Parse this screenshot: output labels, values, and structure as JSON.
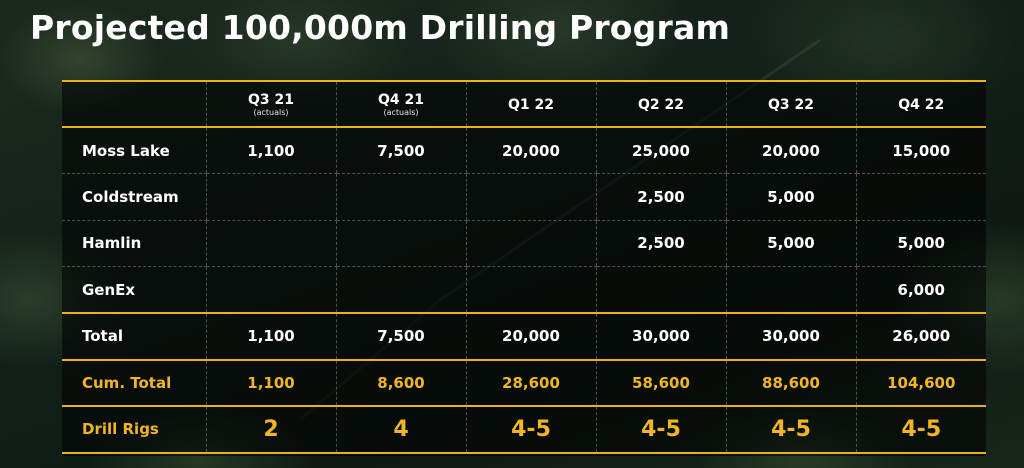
{
  "title": "Projected 100,000m Drilling Program",
  "columns": [
    {
      "label": "Q3 21",
      "note": "(actuals)"
    },
    {
      "label": "Q4 21",
      "note": "(actuals)"
    },
    {
      "label": "Q1 22",
      "note": ""
    },
    {
      "label": "Q2 22",
      "note": ""
    },
    {
      "label": "Q3 22",
      "note": ""
    },
    {
      "label": "Q4 22",
      "note": ""
    }
  ],
  "rows": [
    {
      "label": "Moss Lake",
      "values": [
        "1,100",
        "7,500",
        "20,000",
        "25,000",
        "20,000",
        "15,000"
      ]
    },
    {
      "label": "Coldstream",
      "values": [
        "",
        "",
        "",
        "2,500",
        "5,000",
        ""
      ]
    },
    {
      "label": "Hamlin",
      "values": [
        "",
        "",
        "",
        "2,500",
        "5,000",
        "5,000"
      ]
    },
    {
      "label": "GenEx",
      "values": [
        "",
        "",
        "",
        "",
        "",
        "6,000"
      ]
    }
  ],
  "total": {
    "label": "Total",
    "values": [
      "1,100",
      "7,500",
      "20,000",
      "30,000",
      "30,000",
      "26,000"
    ]
  },
  "cum_total": {
    "label": "Cum. Total",
    "values": [
      "1,100",
      "8,600",
      "28,600",
      "58,600",
      "88,600",
      "104,600"
    ]
  },
  "drill_rigs": {
    "label": "Drill Rigs",
    "values": [
      "2",
      "4",
      "4-5",
      "4-5",
      "4-5",
      "4-5"
    ]
  },
  "colors": {
    "accent": "#e8b21c",
    "accent_text": "#f0b722",
    "text": "#ffffff"
  }
}
